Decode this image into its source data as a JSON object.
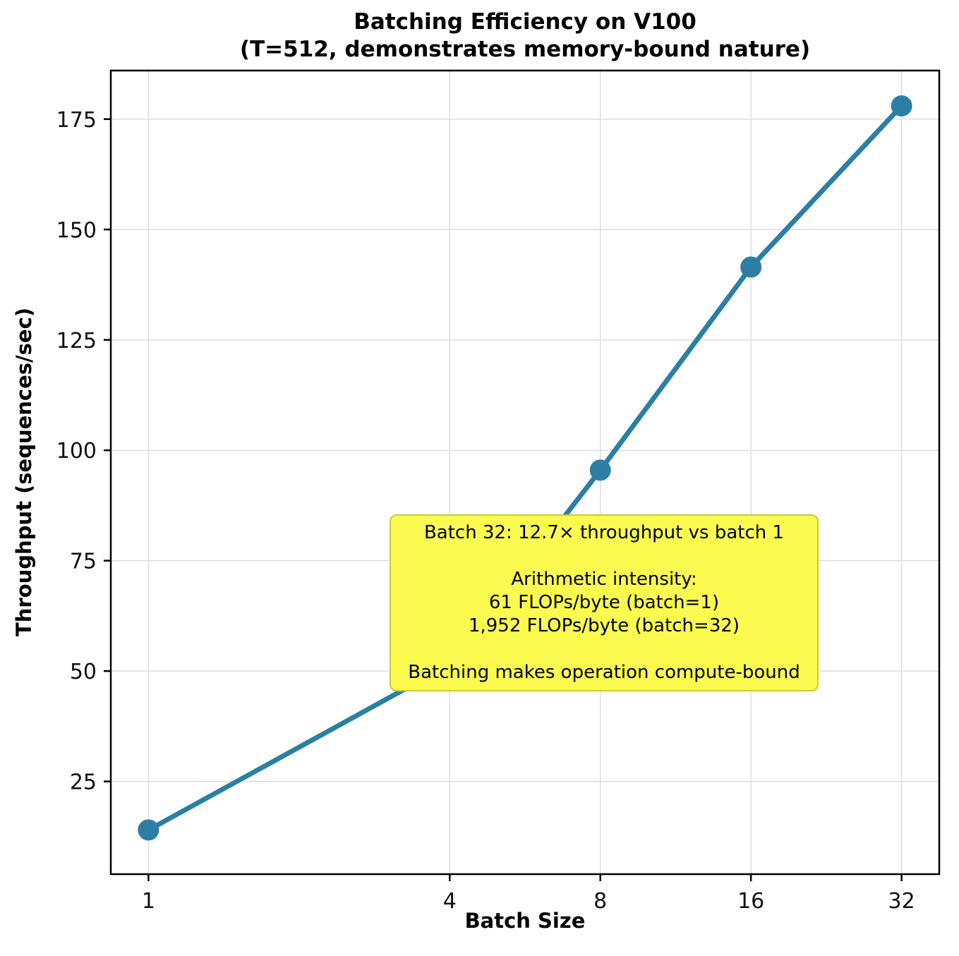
{
  "chart_data": {
    "type": "line",
    "title": "Batching Efficiency on V100",
    "subtitle": "(T=512, demonstrates memory-bound nature)",
    "xlabel": "Batch Size",
    "ylabel": "Throughput (sequences/sec)",
    "x": [
      1,
      4,
      8,
      16,
      32
    ],
    "y": [
      14,
      51.5,
      95.5,
      141.5,
      178
    ],
    "x_ticks": [
      1,
      4,
      8,
      16,
      32
    ],
    "y_ticks": [
      25,
      50,
      75,
      100,
      125,
      150,
      175
    ],
    "x_scale": "log2",
    "xlim_log2": [
      -0.25,
      5.25
    ],
    "ylim": [
      4,
      186
    ],
    "grid": true,
    "legend": "none",
    "line_color": "#2b7fa5",
    "marker_color": "#2b7fa5",
    "grid_color": "#dcdcdc",
    "annotation": {
      "bg_color": "#fbfb4f",
      "border_color": "#c9c930",
      "lines": [
        "Batch 32: 12.7× throughput vs batch 1",
        "",
        "Arithmetic intensity:",
        "61 FLOPs/byte (batch=1)",
        "1,952 FLOPs/byte (batch=32)",
        "",
        "Batching makes operation compute-bound"
      ]
    }
  }
}
